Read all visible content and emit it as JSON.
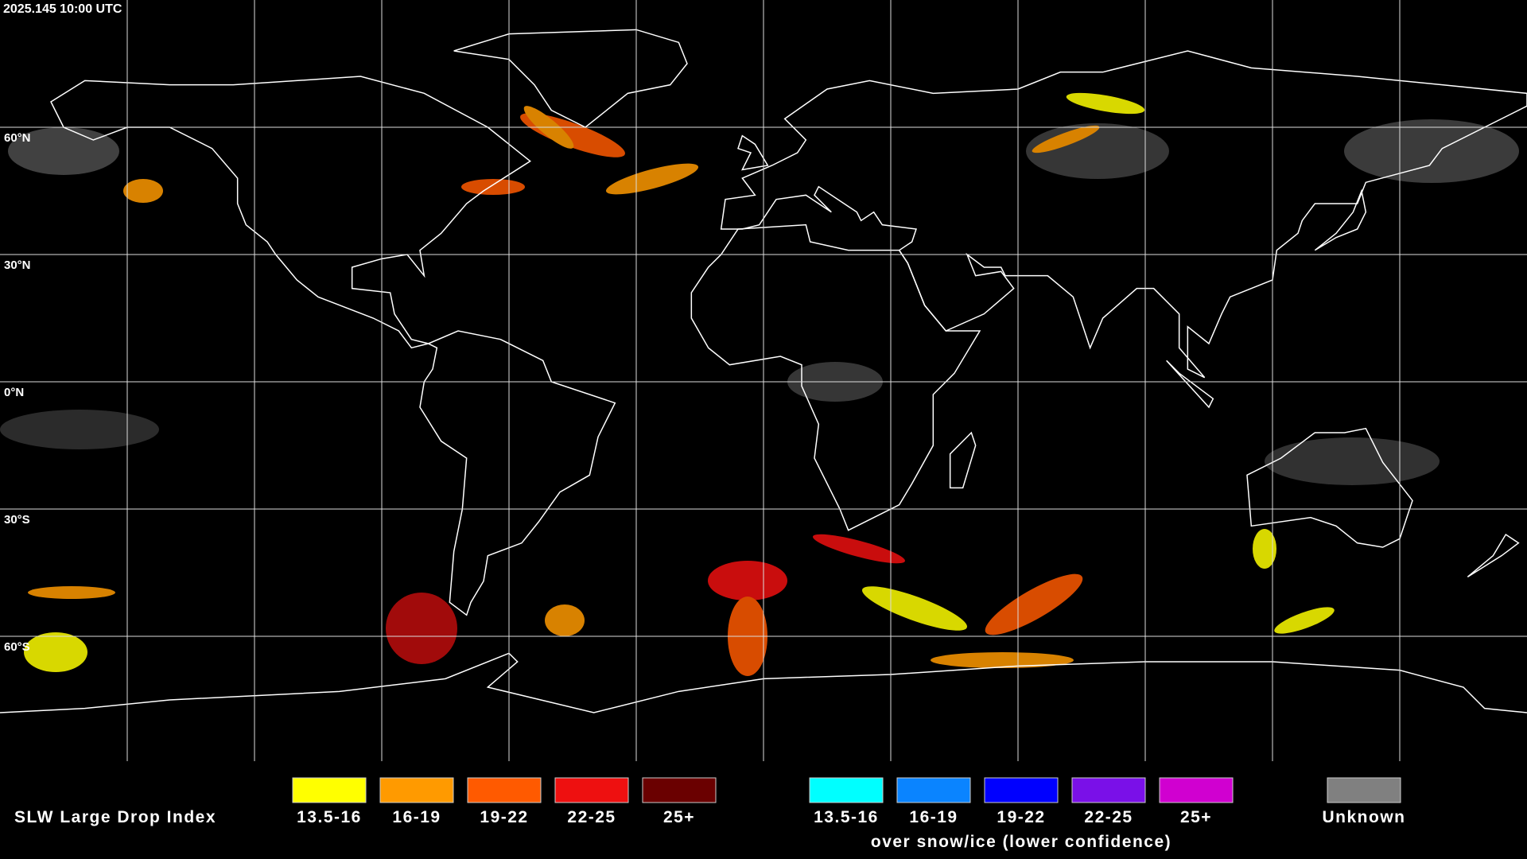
{
  "header": {
    "timestamp": "2025.145 10:00 UTC"
  },
  "map": {
    "latitude_labels": [
      "60°N",
      "30°N",
      "0°N",
      "30°S",
      "60°S"
    ]
  },
  "legend": {
    "title": "SLW Large Drop Index",
    "groups": [
      {
        "items": [
          {
            "label": "13.5-16",
            "color": "#ffff00"
          },
          {
            "label": "16-19",
            "color": "#ff9a00"
          },
          {
            "label": "19-22",
            "color": "#ff5a00"
          },
          {
            "label": "22-25",
            "color": "#ee1010"
          },
          {
            "label": "25+",
            "color": "#6a0000"
          }
        ]
      },
      {
        "items": [
          {
            "label": "13.5-16",
            "color": "#00ffff"
          },
          {
            "label": "16-19",
            "color": "#0a84ff"
          },
          {
            "label": "19-22",
            "color": "#0000ff"
          },
          {
            "label": "22-25",
            "color": "#7a10e8"
          },
          {
            "label": "25+",
            "color": "#d000d0"
          }
        ],
        "caption": "over snow/ice (lower confidence)"
      },
      {
        "items": [
          {
            "label": "Unknown",
            "color": "#808080"
          }
        ]
      }
    ]
  }
}
